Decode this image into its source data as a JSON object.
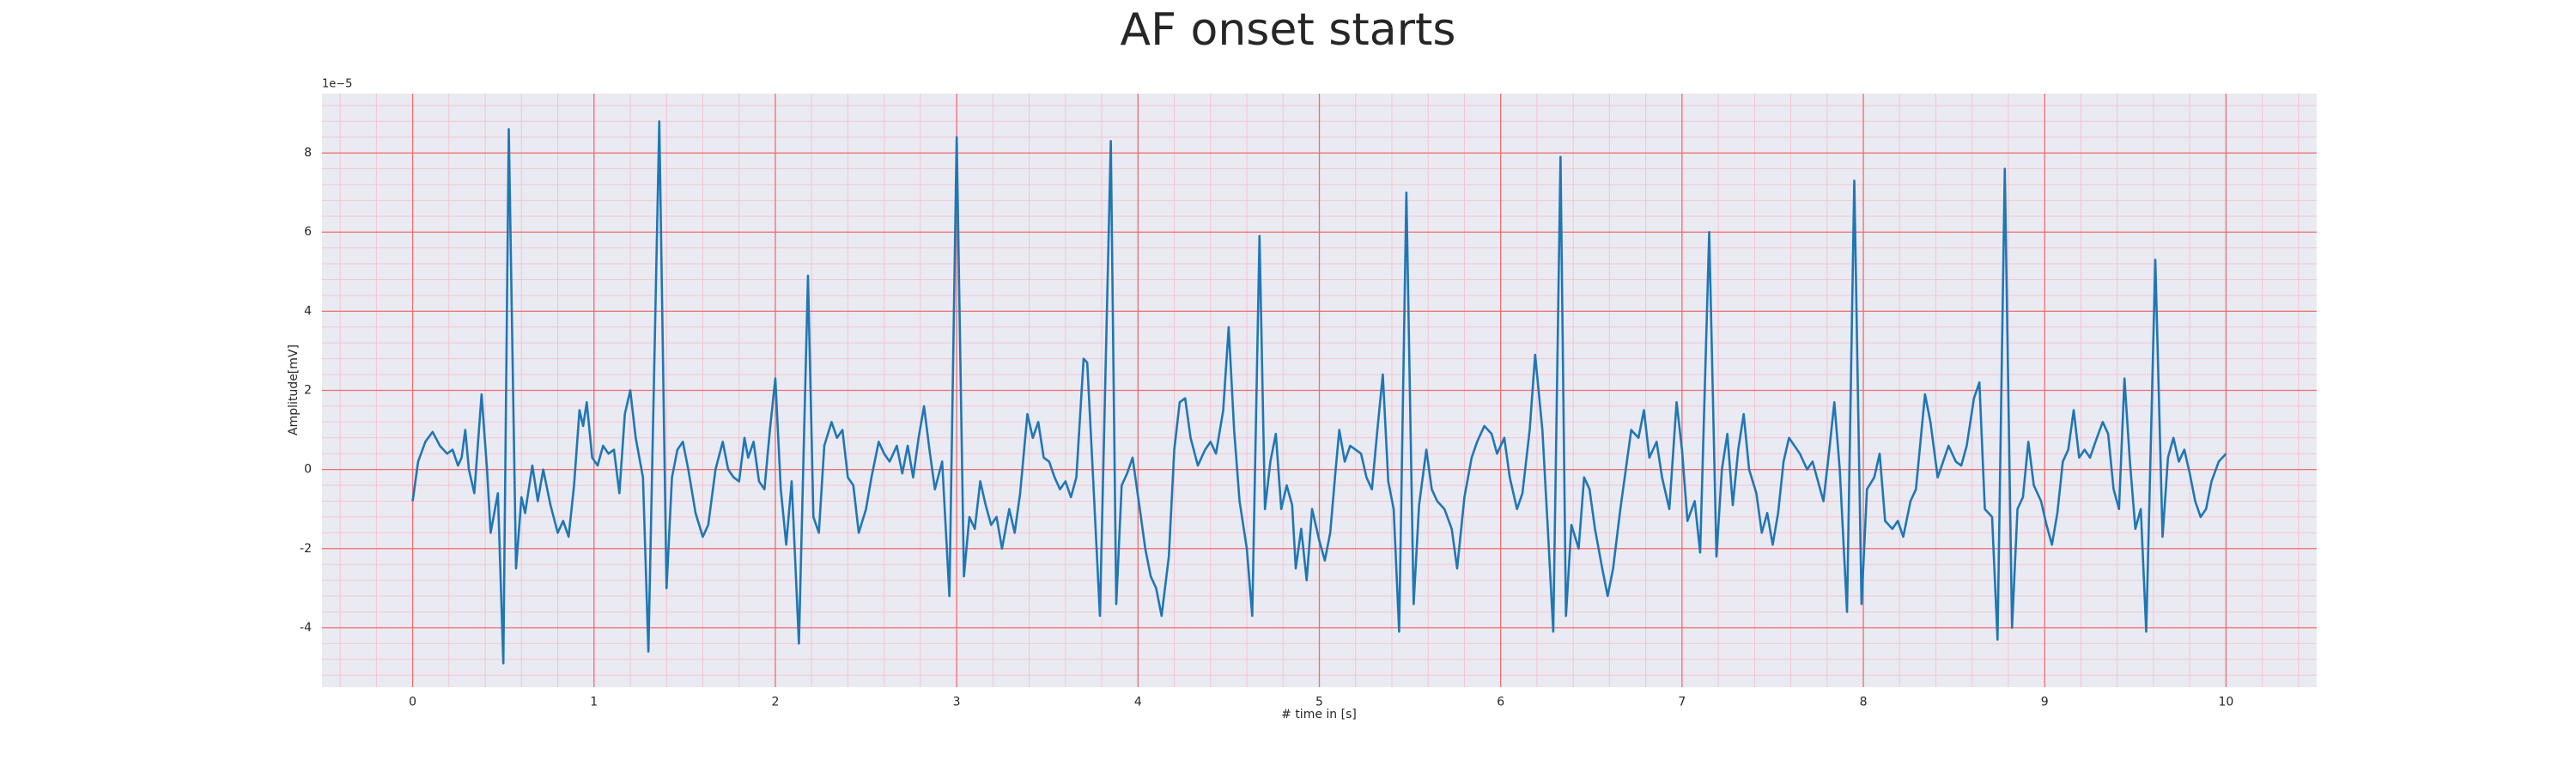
{
  "chart_data": {
    "type": "line",
    "title": "AF onset starts",
    "xlabel": "# time in [s]",
    "ylabel": "Amplitude[mV]",
    "y_offset_label": "1e−5",
    "color": "#1f77b4",
    "background": "#eaeaf2",
    "grid": true,
    "grid_color": "#ec6f6f",
    "minor_grid": true,
    "minor_grid_color": "#f3c5d2",
    "minor_x_step": 0.2,
    "minor_y_step": 0.4,
    "xlim": [
      -0.5,
      10.5
    ],
    "ylim": [
      -5.5,
      9.5
    ],
    "xticks": [
      0,
      1,
      2,
      3,
      4,
      5,
      6,
      7,
      8,
      9,
      10
    ],
    "yticks": [
      -4,
      -2,
      0,
      2,
      4,
      6,
      8
    ],
    "x": [
      0,
      0.03,
      0.07,
      0.11,
      0.15,
      0.19,
      0.22,
      0.25,
      0.27,
      0.29,
      0.31,
      0.34,
      0.38,
      0.41,
      0.43,
      0.47,
      0.5,
      0.53,
      0.57,
      0.6,
      0.62,
      0.66,
      0.69,
      0.72,
      0.76,
      0.8,
      0.83,
      0.86,
      0.89,
      0.92,
      0.94,
      0.96,
      0.99,
      1.02,
      1.05,
      1.08,
      1.11,
      1.14,
      1.17,
      1.2,
      1.23,
      1.27,
      1.3,
      1.36,
      1.4,
      1.43,
      1.46,
      1.49,
      1.52,
      1.56,
      1.6,
      1.63,
      1.67,
      1.71,
      1.74,
      1.77,
      1.8,
      1.83,
      1.85,
      1.88,
      1.91,
      1.94,
      1.97,
      2.0,
      2.03,
      2.06,
      2.09,
      2.13,
      2.18,
      2.21,
      2.24,
      2.27,
      2.31,
      2.34,
      2.37,
      2.4,
      2.43,
      2.46,
      2.5,
      2.53,
      2.57,
      2.6,
      2.63,
      2.67,
      2.7,
      2.73,
      2.76,
      2.79,
      2.82,
      2.85,
      2.88,
      2.92,
      2.96,
      3.0,
      3.04,
      3.07,
      3.1,
      3.13,
      3.16,
      3.19,
      3.22,
      3.25,
      3.29,
      3.32,
      3.35,
      3.39,
      3.42,
      3.45,
      3.48,
      3.51,
      3.54,
      3.57,
      3.6,
      3.63,
      3.66,
      3.7,
      3.72,
      3.75,
      3.79,
      3.85,
      3.88,
      3.91,
      3.94,
      3.97,
      4.01,
      4.04,
      4.07,
      4.1,
      4.13,
      4.17,
      4.2,
      4.23,
      4.26,
      4.29,
      4.33,
      4.37,
      4.4,
      4.43,
      4.47,
      4.5,
      4.53,
      4.56,
      4.6,
      4.63,
      4.67,
      4.7,
      4.73,
      4.76,
      4.79,
      4.82,
      4.85,
      4.87,
      4.9,
      4.93,
      4.96,
      5.0,
      5.03,
      5.06,
      5.09,
      5.11,
      5.14,
      5.17,
      5.2,
      5.23,
      5.26,
      5.29,
      5.32,
      5.35,
      5.38,
      5.41,
      5.44,
      5.48,
      5.52,
      5.55,
      5.59,
      5.62,
      5.65,
      5.69,
      5.73,
      5.76,
      5.8,
      5.84,
      5.87,
      5.91,
      5.95,
      5.98,
      6.02,
      6.05,
      6.09,
      6.12,
      6.16,
      6.19,
      6.23,
      6.26,
      6.29,
      6.33,
      6.36,
      6.39,
      6.43,
      6.46,
      6.49,
      6.52,
      6.56,
      6.59,
      6.62,
      6.66,
      6.69,
      6.72,
      6.76,
      6.79,
      6.82,
      6.86,
      6.89,
      6.93,
      6.97,
      7.0,
      7.03,
      7.07,
      7.1,
      7.15,
      7.19,
      7.22,
      7.25,
      7.28,
      7.31,
      7.34,
      7.37,
      7.41,
      7.44,
      7.47,
      7.5,
      7.53,
      7.56,
      7.59,
      7.62,
      7.65,
      7.69,
      7.72,
      7.75,
      7.78,
      7.81,
      7.84,
      7.87,
      7.91,
      7.95,
      7.99,
      8.02,
      8.06,
      8.09,
      8.12,
      8.16,
      8.19,
      8.22,
      8.26,
      8.29,
      8.34,
      8.37,
      8.41,
      8.44,
      8.47,
      8.51,
      8.54,
      8.57,
      8.61,
      8.64,
      8.67,
      8.71,
      8.74,
      8.78,
      8.82,
      8.85,
      8.88,
      8.91,
      8.94,
      8.98,
      9.01,
      9.04,
      9.07,
      9.1,
      9.13,
      9.16,
      9.19,
      9.22,
      9.25,
      9.28,
      9.32,
      9.35,
      9.38,
      9.41,
      9.44,
      9.47,
      9.5,
      9.53,
      9.56,
      9.61,
      9.65,
      9.68,
      9.71,
      9.74,
      9.77,
      9.8,
      9.83,
      9.86,
      9.89,
      9.92,
      9.96,
      10.0
    ],
    "values": [
      -0.8,
      0.2,
      0.7,
      0.95,
      0.6,
      0.4,
      0.5,
      0.1,
      0.3,
      1.0,
      0.0,
      -0.6,
      1.9,
      0.0,
      -1.6,
      -0.6,
      -4.9,
      8.6,
      -2.5,
      -0.7,
      -1.1,
      0.1,
      -0.8,
      0.0,
      -0.9,
      -1.6,
      -1.3,
      -1.7,
      -0.4,
      1.5,
      1.1,
      1.7,
      0.3,
      0.1,
      0.6,
      0.4,
      0.5,
      -0.6,
      1.4,
      2.0,
      0.8,
      -0.2,
      -4.6,
      8.8,
      -3.0,
      -0.2,
      0.5,
      0.7,
      0.0,
      -1.1,
      -1.7,
      -1.4,
      0.0,
      0.7,
      0.0,
      -0.2,
      -0.3,
      0.8,
      0.3,
      0.7,
      -0.3,
      -0.5,
      1.0,
      2.3,
      -0.5,
      -1.9,
      -0.3,
      -4.4,
      4.9,
      -1.2,
      -1.6,
      0.6,
      1.2,
      0.8,
      1.0,
      -0.2,
      -0.4,
      -1.6,
      -1.0,
      -0.2,
      0.7,
      0.4,
      0.2,
      0.6,
      -0.1,
      0.6,
      -0.2,
      0.8,
      1.6,
      0.5,
      -0.5,
      0.2,
      -3.2,
      8.4,
      -2.7,
      -1.2,
      -1.5,
      -0.3,
      -0.9,
      -1.4,
      -1.2,
      -2.0,
      -1.0,
      -1.6,
      -0.6,
      1.4,
      0.8,
      1.2,
      0.3,
      0.2,
      -0.2,
      -0.5,
      -0.3,
      -0.7,
      -0.2,
      2.8,
      2.7,
      0.0,
      -3.7,
      8.3,
      -3.4,
      -0.4,
      -0.1,
      0.3,
      -1.0,
      -2.0,
      -2.7,
      -3.0,
      -3.7,
      -2.2,
      0.5,
      1.7,
      1.8,
      0.8,
      0.1,
      0.5,
      0.7,
      0.4,
      1.5,
      3.6,
      1.0,
      -0.8,
      -2.0,
      -3.7,
      5.9,
      -1.0,
      0.2,
      0.9,
      -1.0,
      -0.4,
      -0.9,
      -2.5,
      -1.5,
      -2.8,
      -1.0,
      -1.8,
      -2.3,
      -1.6,
      0.0,
      1.0,
      0.2,
      0.6,
      0.5,
      0.4,
      -0.2,
      -0.5,
      1.0,
      2.4,
      -0.3,
      -1.0,
      -4.1,
      7.0,
      -3.4,
      -0.9,
      0.5,
      -0.5,
      -0.8,
      -1.0,
      -1.5,
      -2.5,
      -0.7,
      0.3,
      0.7,
      1.1,
      0.9,
      0.4,
      0.8,
      -0.2,
      -1.0,
      -0.6,
      1.0,
      2.9,
      1.0,
      -1.5,
      -4.1,
      7.9,
      -3.7,
      -1.4,
      -2.0,
      -0.2,
      -0.5,
      -1.5,
      -2.5,
      -3.2,
      -2.5,
      -1.0,
      0.0,
      1.0,
      0.8,
      1.5,
      0.3,
      0.7,
      -0.2,
      -1.0,
      1.7,
      0.5,
      -1.3,
      -0.8,
      -2.1,
      6.0,
      -2.2,
      0.0,
      0.9,
      -0.9,
      0.5,
      1.4,
      0.0,
      -0.6,
      -1.6,
      -1.1,
      -1.9,
      -1.1,
      0.2,
      0.8,
      0.6,
      0.4,
      0.0,
      0.2,
      -0.3,
      -0.8,
      0.4,
      1.7,
      0.0,
      -3.6,
      7.3,
      -3.4,
      -0.5,
      -0.2,
      0.4,
      -1.3,
      -1.5,
      -1.3,
      -1.7,
      -0.8,
      -0.5,
      1.9,
      1.2,
      -0.2,
      0.2,
      0.6,
      0.2,
      0.1,
      0.6,
      1.8,
      2.2,
      -1.0,
      -1.2,
      -4.3,
      7.6,
      -4.0,
      -1.0,
      -0.7,
      0.7,
      -0.4,
      -0.8,
      -1.4,
      -1.9,
      -1.1,
      0.2,
      0.5,
      1.5,
      0.3,
      0.5,
      0.3,
      0.7,
      1.2,
      0.9,
      -0.5,
      -1.0,
      2.3,
      0.2,
      -1.5,
      -1.0,
      -4.1,
      5.3,
      -1.7,
      0.3,
      0.8,
      0.2,
      0.5,
      -0.1,
      -0.8,
      -1.2,
      -1.0,
      -0.3,
      0.2,
      0.4
    ]
  }
}
